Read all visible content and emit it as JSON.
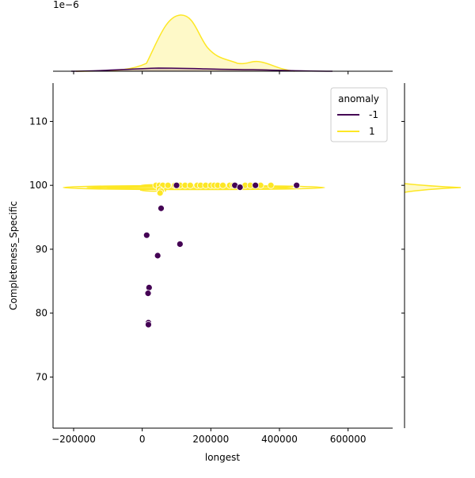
{
  "chart_data": {
    "type": "scatter",
    "title": "",
    "xlabel": "longest",
    "ylabel": "Completeness_Specific",
    "xlim": [
      -260000,
      730000
    ],
    "ylim": [
      62,
      116
    ],
    "x_ticks": [
      -200000,
      0,
      200000,
      400000,
      600000
    ],
    "x_tick_labels": [
      "−200000",
      "0",
      "200000",
      "400000",
      "600000"
    ],
    "y_ticks": [
      70,
      80,
      90,
      100,
      110
    ],
    "y_tick_labels": [
      "70",
      "80",
      "90",
      "100",
      "110"
    ],
    "top_marginal": {
      "type": "kde",
      "scale_label": "1e−6"
    },
    "right_marginal": {
      "type": "kde"
    },
    "legend": {
      "title": "anomaly",
      "placement": "top-right",
      "entries": [
        {
          "label": "-1",
          "color": "#440154"
        },
        {
          "label": "1",
          "color": "#fde725"
        }
      ]
    },
    "grid": false,
    "series": [
      {
        "name": "-1",
        "color": "#440154",
        "points": [
          [
            100000,
            100
          ],
          [
            270000,
            100
          ],
          [
            285000,
            99.7
          ],
          [
            330000,
            100
          ],
          [
            450000,
            100
          ],
          [
            55000,
            96.4
          ],
          [
            13000,
            92.2
          ],
          [
            110000,
            90.8
          ],
          [
            45000,
            89.0
          ],
          [
            20000,
            84.0
          ],
          [
            17000,
            83.1
          ],
          [
            18000,
            78.5
          ],
          [
            18000,
            78.2
          ]
        ]
      },
      {
        "name": "1",
        "color": "#fde725",
        "points": [
          [
            40000,
            100
          ],
          [
            50000,
            100
          ],
          [
            60000,
            100
          ],
          [
            75000,
            100
          ],
          [
            95000,
            100
          ],
          [
            110000,
            100
          ],
          [
            125000,
            100
          ],
          [
            140000,
            100
          ],
          [
            160000,
            100
          ],
          [
            170000,
            100
          ],
          [
            185000,
            100
          ],
          [
            200000,
            100
          ],
          [
            210000,
            100
          ],
          [
            220000,
            100
          ],
          [
            235000,
            100
          ],
          [
            255000,
            100
          ],
          [
            265000,
            100
          ],
          [
            300000,
            100
          ],
          [
            315000,
            100
          ],
          [
            345000,
            100
          ],
          [
            375000,
            100
          ],
          [
            50000,
            99.4
          ],
          [
            55000,
            99.1
          ],
          [
            52000,
            98.8
          ]
        ]
      }
    ]
  }
}
